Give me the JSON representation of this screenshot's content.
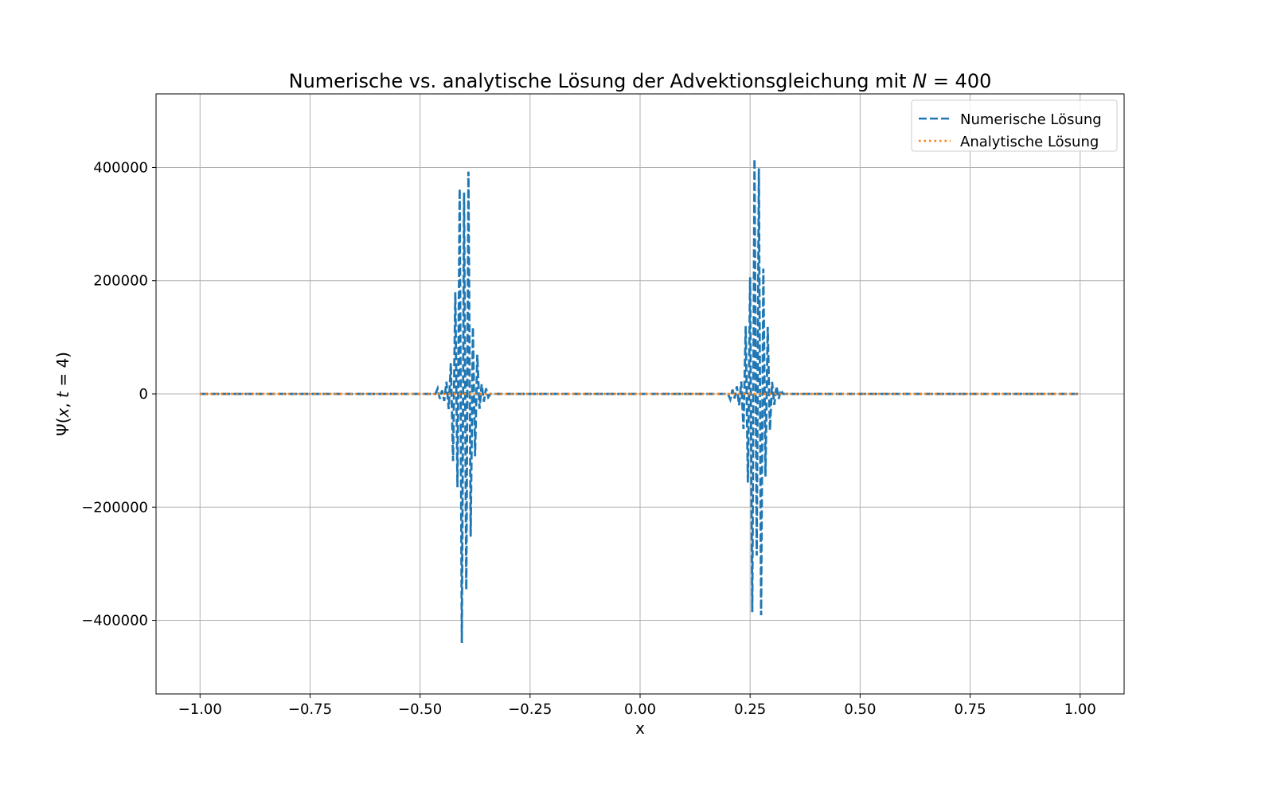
{
  "chart_data": {
    "type": "line",
    "title": "Numerische vs. analytische Lösung der Advektionsgleichung mit N = 400",
    "title_parts": [
      "Numerische vs. analytische Lösung der Advektionsgleichung mit ",
      "N",
      " = 400"
    ],
    "xlabel": "x",
    "ylabel_parts": [
      "Ψ(",
      "x",
      ", ",
      "t",
      " = 4)"
    ],
    "ylabel": "Ψ(x, t = 4)",
    "xlim": [
      -1.1,
      1.1
    ],
    "ylim": [
      -530000,
      530000
    ],
    "x_ticks": [
      -1.0,
      -0.75,
      -0.5,
      -0.25,
      0.0,
      0.25,
      0.5,
      0.75,
      1.0
    ],
    "x_tick_labels": [
      "−1.00",
      "−0.75",
      "−0.50",
      "−0.25",
      "0.00",
      "0.25",
      "0.50",
      "0.75",
      "1.00"
    ],
    "y_ticks": [
      -400000,
      -200000,
      0,
      200000,
      400000
    ],
    "y_tick_labels": [
      "−400000",
      "−200000",
      "0",
      "200000",
      "400000"
    ],
    "grid": true,
    "legend_position": "top-right",
    "series": [
      {
        "name": "Numerische Lösung",
        "color": "#1f77b4",
        "style": "dashed",
        "x_range": [
          -1.0,
          0.995
        ],
        "points": 400,
        "wave_packets": [
          {
            "center": -0.4,
            "halfwidth": 0.05,
            "peak": 485000,
            "trough": -465000
          },
          {
            "center": 0.265,
            "halfwidth": 0.05,
            "peak": 468000,
            "trough": -483000
          }
        ]
      },
      {
        "name": "Analytische Lösung",
        "color": "#ff7f0e",
        "style": "dotted",
        "x_range": [
          -1.0,
          0.995
        ],
        "constant_value": 0
      }
    ]
  }
}
